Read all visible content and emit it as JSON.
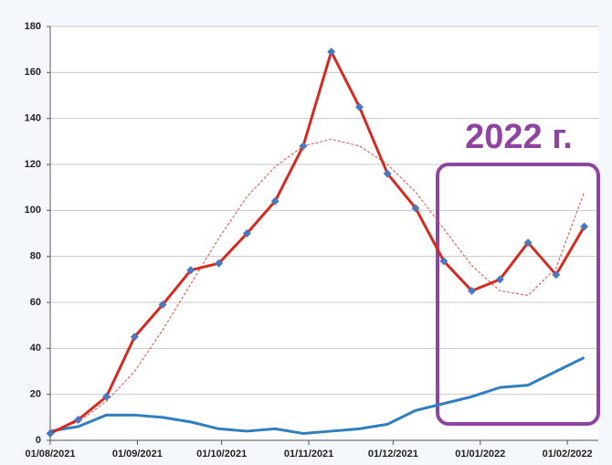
{
  "chart_data": {
    "type": "line",
    "annotation": "2022 г.",
    "x": [
      "2021-08-01",
      "2021-08-11",
      "2021-08-21",
      "2021-08-31",
      "2021-09-10",
      "2021-09-20",
      "2021-09-30",
      "2021-10-10",
      "2021-10-20",
      "2021-10-30",
      "2021-11-09",
      "2021-11-19",
      "2021-11-29",
      "2021-12-09",
      "2021-12-19",
      "2021-12-29",
      "2022-01-08",
      "2022-01-18",
      "2022-01-28",
      "2022-02-07"
    ],
    "series": [
      {
        "color": "#d42a20",
        "markers": true,
        "values": [
          3,
          9,
          19,
          45,
          59,
          74,
          77,
          90,
          104,
          128,
          169,
          145,
          116,
          101,
          78,
          65,
          70,
          86,
          72,
          93
        ]
      },
      {
        "color": "#2f7fc0",
        "markers": false,
        "values": [
          4,
          6,
          11,
          11,
          10,
          8,
          5,
          4,
          5,
          3,
          4,
          5,
          7,
          13,
          16,
          19,
          23,
          24,
          30,
          36
        ]
      },
      {
        "color": "#e04a40",
        "dashed": true,
        "markers": false,
        "values": [
          4,
          8,
          17,
          30,
          48,
          68,
          88,
          106,
          119,
          128,
          131,
          128,
          120,
          108,
          92,
          76,
          65,
          63,
          75,
          108
        ]
      }
    ],
    "xlim": [
      "2021-08-01",
      "2022-02-12"
    ],
    "xticks": [
      {
        "value": "2021-08-01",
        "label": "01/08/2021"
      },
      {
        "value": "2021-09-01",
        "label": "01/09/2021"
      },
      {
        "value": "2021-10-01",
        "label": "01/10/2021"
      },
      {
        "value": "2021-11-01",
        "label": "01/11/2021"
      },
      {
        "value": "2021-12-01",
        "label": "01/12/2021"
      },
      {
        "value": "2022-01-01",
        "label": "01/01/2022"
      },
      {
        "value": "2022-02-01",
        "label": "01/02/2022"
      }
    ],
    "ylim": [
      0,
      180
    ],
    "yticks": [
      0,
      20,
      40,
      60,
      80,
      100,
      120,
      140,
      160,
      180
    ],
    "grid": true
  }
}
